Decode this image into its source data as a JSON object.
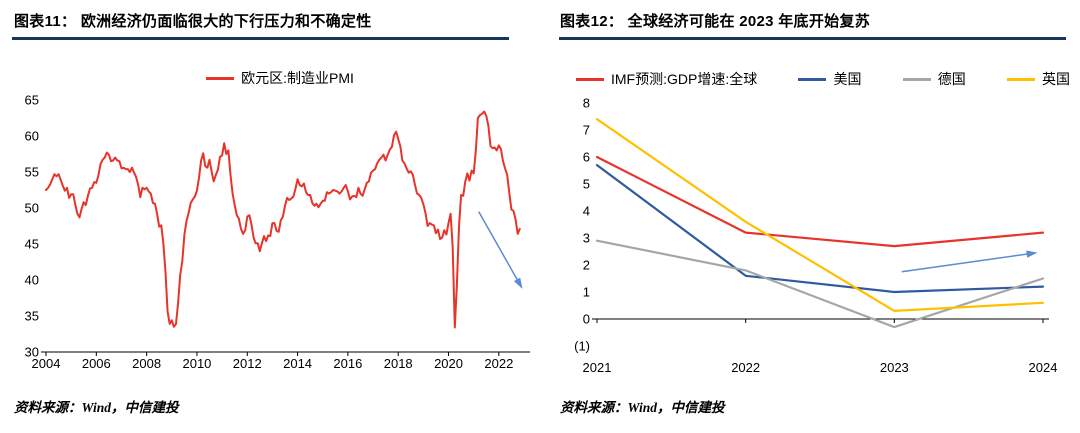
{
  "panels": {
    "left": {
      "title": "图表11：  欧洲经济仍面临很大的下行压力和不确定性",
      "source": "资料来源：Wind，中信建投"
    },
    "right": {
      "title": "图表12：  全球经济可能在 2023 年底开始复苏",
      "source": "资料来源：Wind，中信建投"
    }
  },
  "colors": {
    "title_rule": "#17365d",
    "arrow": "#5b8bd0",
    "axis": "#000000",
    "red": "#e7342b",
    "blue": "#2e5aa0",
    "gray": "#a6a6a6",
    "yellow": "#ffc000"
  },
  "chart_data": [
    {
      "type": "line",
      "title": "图表11：  欧洲经济仍面临很大的下行压力和不确定性",
      "legend_position": "top-center",
      "grid": false,
      "x_start": 2004,
      "x_interval_years": 0.0833333,
      "xlim": [
        2004,
        2023
      ],
      "ylim": [
        30,
        65
      ],
      "axis_at": 30,
      "yticks": [
        {
          "v": 65,
          "label": "65"
        },
        {
          "v": 60,
          "label": "60"
        },
        {
          "v": 55,
          "label": "55"
        },
        {
          "v": 50,
          "label": "50"
        },
        {
          "v": 45,
          "label": "45"
        },
        {
          "v": 40,
          "label": "40"
        },
        {
          "v": 35,
          "label": "35"
        },
        {
          "v": 30,
          "label": "30"
        }
      ],
      "xticks": [
        {
          "v": 2004,
          "label": "2004"
        },
        {
          "v": 2006,
          "label": "2006"
        },
        {
          "v": 2008,
          "label": "2008"
        },
        {
          "v": 2010,
          "label": "2010"
        },
        {
          "v": 2012,
          "label": "2012"
        },
        {
          "v": 2014,
          "label": "2014"
        },
        {
          "v": 2016,
          "label": "2016"
        },
        {
          "v": 2018,
          "label": "2018"
        },
        {
          "v": 2020,
          "label": "2020"
        },
        {
          "v": 2022,
          "label": "2022"
        }
      ],
      "series": [
        {
          "name": "欧元区:制造业PMI",
          "color": "#e7342b",
          "width": 2,
          "values": [
            52.5,
            52.8,
            53.3,
            54.0,
            54.7,
            54.4,
            54.7,
            53.9,
            53.1,
            52.4,
            52.8,
            51.4,
            51.9,
            51.9,
            50.4,
            49.2,
            48.7,
            49.9,
            50.8,
            50.4,
            51.7,
            52.7,
            52.8,
            53.6,
            53.5,
            54.5,
            56.1,
            56.7,
            57.0,
            57.7,
            57.4,
            56.5,
            56.6,
            57.0,
            56.6,
            56.5,
            55.5,
            55.6,
            55.4,
            55.4,
            55.0,
            55.6,
            54.9,
            54.3,
            53.2,
            51.5,
            52.8,
            52.6,
            52.8,
            52.3,
            52.0,
            50.7,
            50.6,
            49.2,
            47.4,
            47.6,
            45.0,
            41.1,
            35.6,
            33.9,
            34.4,
            33.5,
            33.9,
            36.8,
            40.7,
            42.6,
            46.3,
            48.2,
            49.3,
            50.7,
            51.2,
            51.6,
            52.4,
            54.2,
            56.6,
            57.6,
            55.8,
            55.6,
            56.7,
            55.1,
            53.7,
            54.6,
            55.3,
            57.1,
            57.3,
            59.0,
            57.5,
            58.0,
            54.6,
            52.0,
            50.4,
            49.0,
            48.5,
            47.1,
            46.4,
            46.9,
            48.8,
            49.0,
            47.7,
            45.9,
            45.1,
            45.1,
            44.0,
            45.1,
            46.1,
            45.4,
            46.2,
            46.1,
            47.9,
            47.9,
            46.8,
            46.7,
            48.3,
            48.8,
            50.3,
            51.4,
            51.1,
            51.3,
            51.6,
            52.7,
            54.0,
            53.2,
            53.0,
            53.4,
            52.2,
            51.8,
            51.8,
            50.7,
            50.3,
            50.6,
            50.1,
            50.6,
            51.0,
            51.0,
            52.2,
            52.0,
            52.2,
            52.5,
            52.4,
            52.3,
            52.0,
            52.3,
            52.8,
            53.2,
            52.3,
            51.2,
            51.6,
            51.7,
            51.5,
            52.8,
            52.0,
            51.7,
            52.6,
            53.5,
            53.7,
            54.9,
            55.2,
            55.4,
            56.2,
            56.7,
            57.0,
            57.4,
            56.6,
            57.4,
            58.1,
            58.5,
            60.1,
            60.6,
            59.6,
            58.6,
            56.6,
            56.2,
            55.5,
            54.9,
            55.1,
            54.6,
            53.2,
            52.0,
            51.8,
            51.4,
            50.5,
            49.3,
            47.5,
            47.9,
            47.7,
            47.6,
            46.5,
            47.0,
            45.7,
            45.9,
            46.9,
            46.3,
            47.9,
            49.2,
            44.5,
            33.4,
            39.4,
            47.4,
            51.8,
            51.7,
            53.7,
            54.8,
            53.8,
            55.2,
            54.8,
            57.9,
            62.5,
            62.9,
            63.1,
            63.4,
            62.8,
            61.4,
            58.6,
            58.3,
            58.4,
            58.0,
            58.7,
            58.2,
            56.5,
            55.5,
            54.6,
            52.1,
            49.8,
            49.6,
            48.4,
            46.4,
            47.1
          ]
        }
      ],
      "arrow": {
        "from": [
          2021.2,
          49.5
        ],
        "to": [
          2022.9,
          39.0
        ]
      }
    },
    {
      "type": "line",
      "title": "图表12：  全球经济可能在 2023 年底开始复苏",
      "legend_position": "top",
      "grid": false,
      "x": [
        2021,
        2022,
        2023,
        2024
      ],
      "xlim": [
        2021,
        2024
      ],
      "ylim": [
        -1,
        8
      ],
      "axis_at": 0,
      "yticks": [
        {
          "v": 8,
          "label": "8"
        },
        {
          "v": 7,
          "label": "7"
        },
        {
          "v": 6,
          "label": "6"
        },
        {
          "v": 5,
          "label": "5"
        },
        {
          "v": 4,
          "label": "4"
        },
        {
          "v": 3,
          "label": "3"
        },
        {
          "v": 2,
          "label": "2"
        },
        {
          "v": 1,
          "label": "1"
        },
        {
          "v": 0,
          "label": "0"
        },
        {
          "v": -1,
          "label": "(1)",
          "color": "#e7342b"
        }
      ],
      "xticks": [
        {
          "v": 2021,
          "label": "2021"
        },
        {
          "v": 2022,
          "label": "2022"
        },
        {
          "v": 2023,
          "label": "2023"
        },
        {
          "v": 2024,
          "label": "2024"
        }
      ],
      "series": [
        {
          "name": "IMF预测:GDP增速:全球",
          "color": "#e7342b",
          "width": 2.2,
          "values": [
            6.0,
            3.2,
            2.7,
            3.2
          ]
        },
        {
          "name": "美国",
          "color": "#2e5aa0",
          "width": 2.2,
          "values": [
            5.7,
            1.6,
            1.0,
            1.2
          ]
        },
        {
          "name": "德国",
          "color": "#a6a6a6",
          "width": 2.2,
          "values": [
            2.9,
            1.8,
            -0.3,
            1.5
          ]
        },
        {
          "name": "英国",
          "color": "#ffc000",
          "width": 2.2,
          "values": [
            7.4,
            3.6,
            0.3,
            0.6
          ]
        }
      ],
      "arrow": {
        "from": [
          2023.05,
          1.75
        ],
        "to": [
          2023.95,
          2.45
        ]
      }
    }
  ]
}
